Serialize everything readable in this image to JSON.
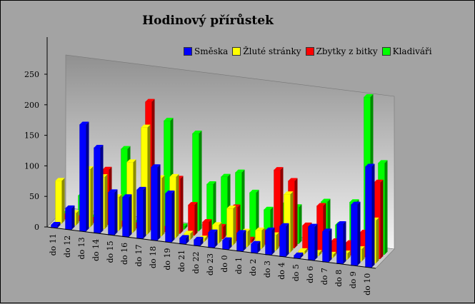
{
  "chart_data": {
    "type": "bar",
    "title": "Hodinový přírůstek",
    "ylim": [
      0,
      250
    ],
    "yticks": [
      "0",
      "50",
      "100",
      "150",
      "200",
      "250"
    ],
    "categories": [
      "do 11",
      "do 12",
      "do 13",
      "do 14",
      "do 15",
      "do 16",
      "do 17",
      "do 18",
      "do 19",
      "do 21",
      "do 22",
      "do 23",
      "do 0",
      "do 1",
      "do 2",
      "do 3",
      "do 4",
      "do 5",
      "do 6",
      "do 7",
      "do 8",
      "do 9",
      "do 10"
    ],
    "legend_position": "top-right",
    "series": [
      {
        "name": "Směska",
        "color": "#0000ff",
        "values": [
          5,
          35,
          175,
          140,
          70,
          65,
          80,
          120,
          80,
          10,
          10,
          25,
          15,
          30,
          15,
          40,
          50,
          5,
          55,
          50,
          65,
          100,
          165
        ]
      },
      {
        "name": "Žluté stránky",
        "color": "#ffff00",
        "values": [
          70,
          20,
          95,
          85,
          55,
          115,
          175,
          95,
          100,
          10,
          5,
          30,
          60,
          25,
          30,
          25,
          95,
          5,
          5,
          5,
          10,
          20,
          70
        ]
      },
      {
        "name": "Zbytky z bitky",
        "color": "#ff0000",
        "values": [
          5,
          5,
          5,
          90,
          5,
          5,
          210,
          5,
          90,
          50,
          25,
          20,
          55,
          5,
          20,
          125,
          110,
          40,
          75,
          20,
          20,
          40,
          125
        ]
      },
      {
        "name": "Kladiváři",
        "color": "#00ff00",
        "values": [
          5,
          35,
          5,
          10,
          120,
          5,
          5,
          175,
          5,
          160,
          80,
          95,
          105,
          75,
          50,
          60,
          60,
          20,
          75,
          40,
          80,
          255,
          150
        ]
      }
    ]
  }
}
